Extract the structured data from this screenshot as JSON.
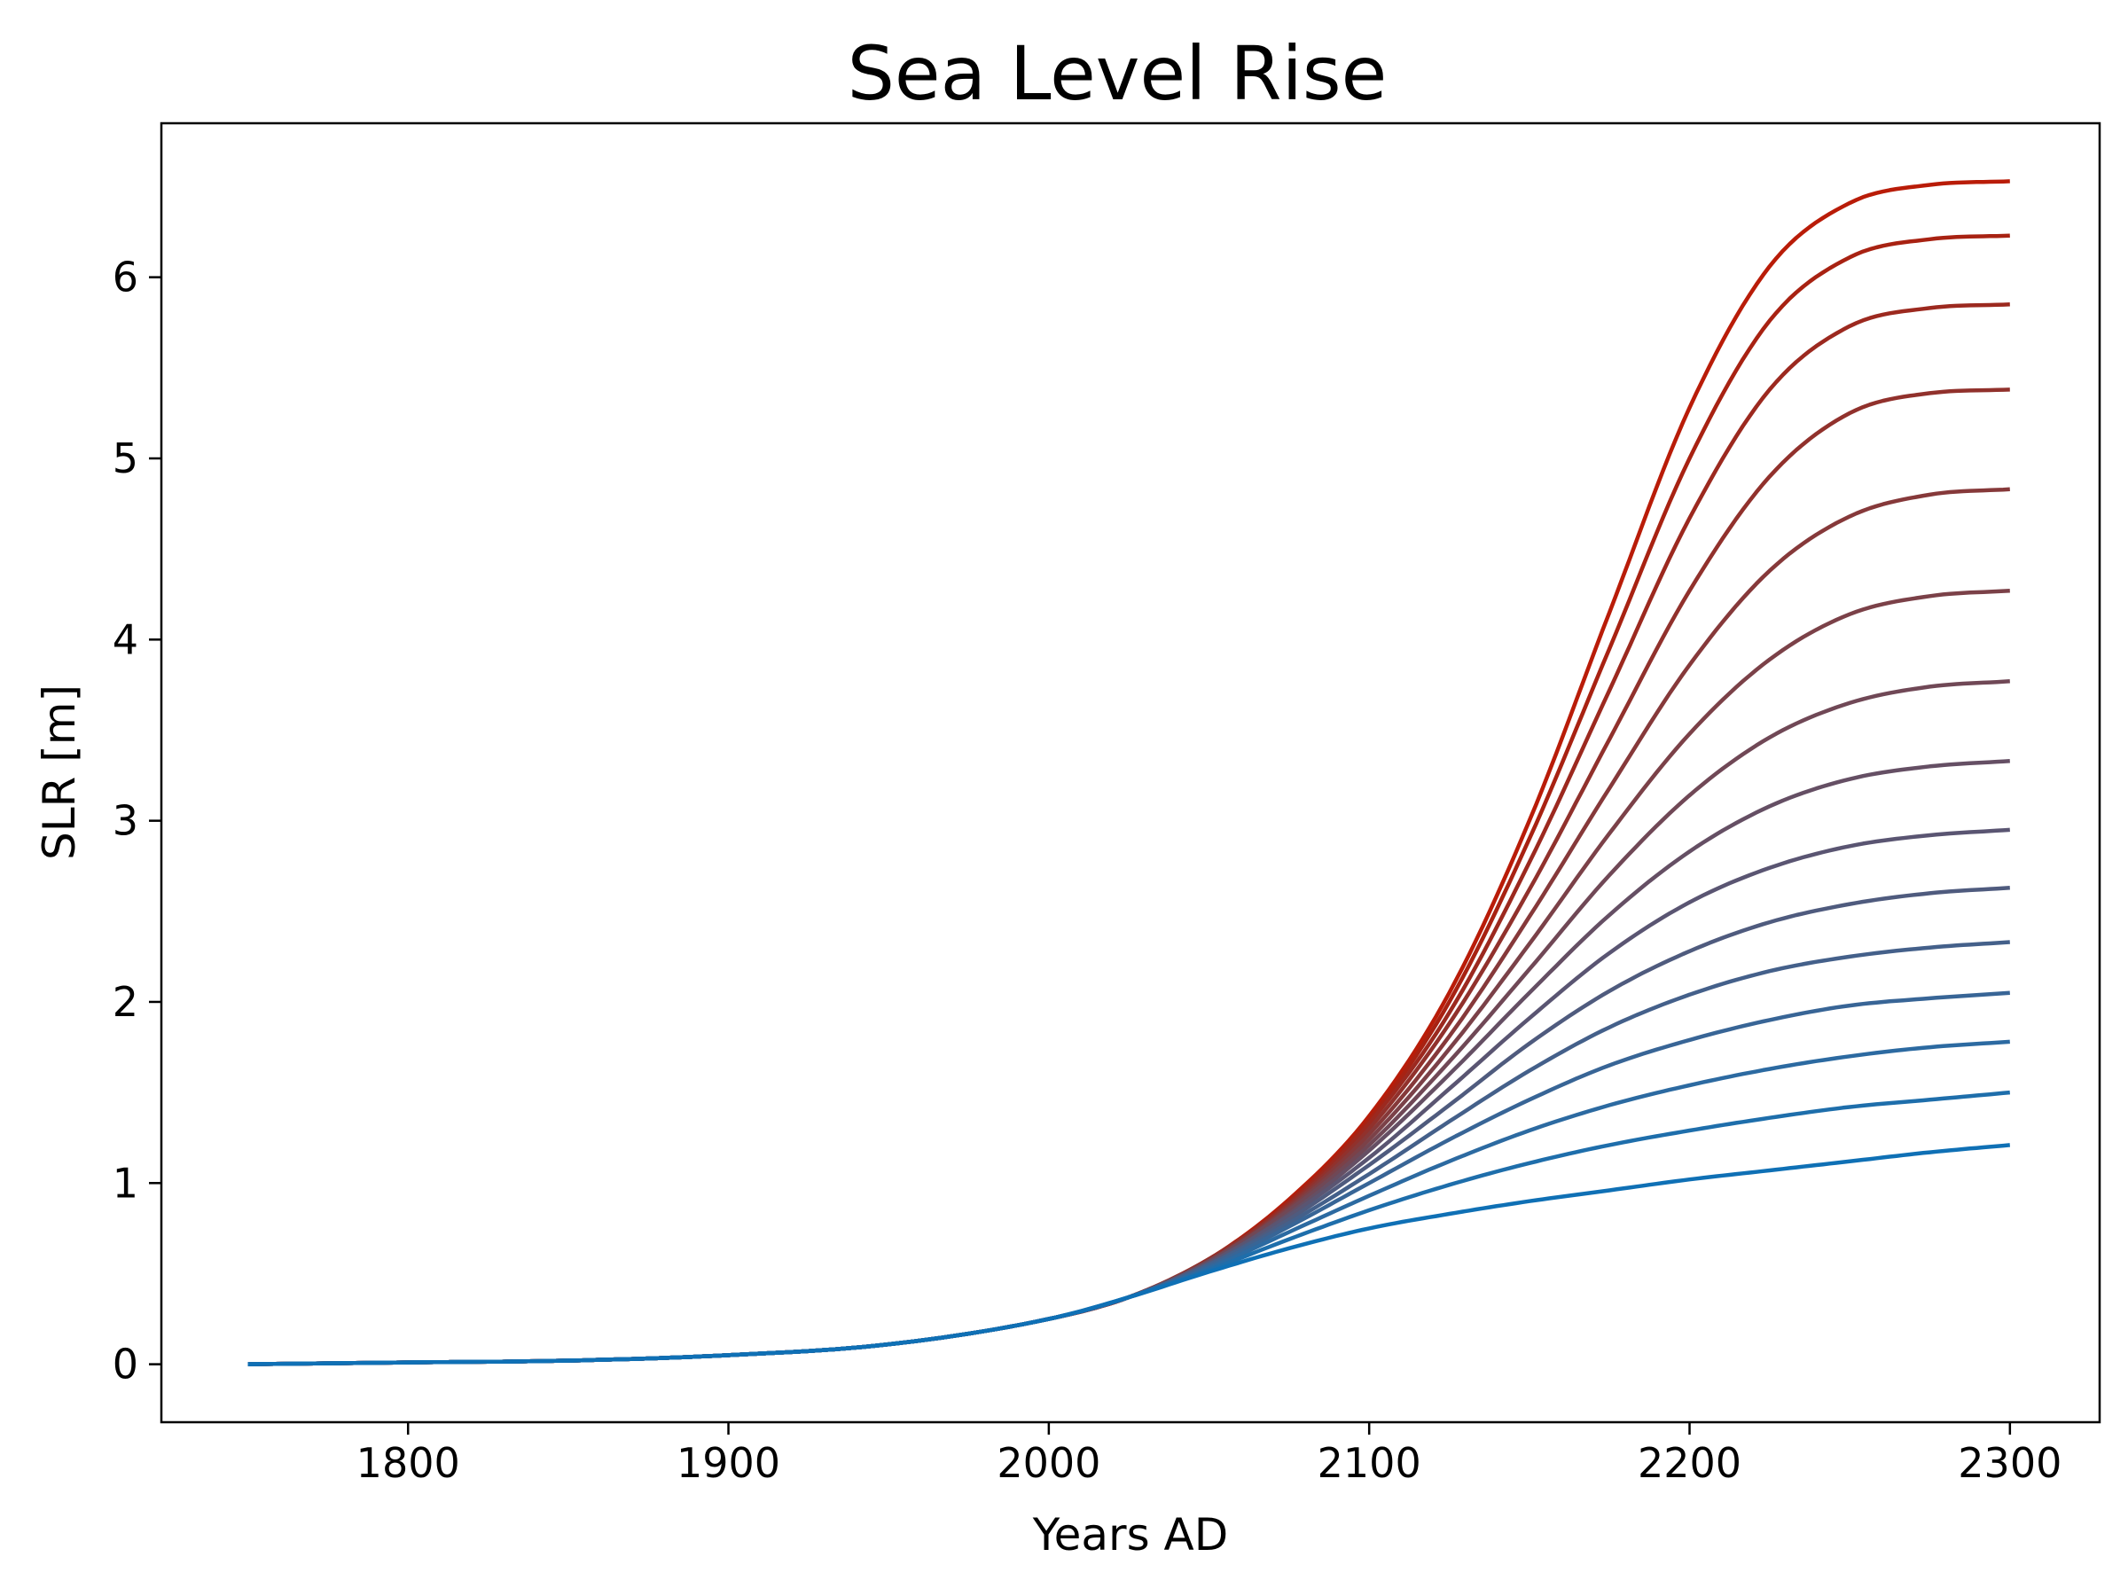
{
  "chart_data": {
    "type": "line",
    "title": "Sea Level Rise",
    "xlabel": "Years AD",
    "ylabel": "SLR [m]",
    "xlim": [
      1723,
      2328
    ],
    "ylim": [
      -0.32,
      6.85
    ],
    "xticks": [
      "1800",
      "1900",
      "2000",
      "2100",
      "2200",
      "2300"
    ],
    "yticks": [
      "0",
      "1",
      "2",
      "3",
      "4",
      "5",
      "6"
    ],
    "grid": false,
    "legend": "none",
    "x": [
      1750,
      1800,
      1850,
      1900,
      1950,
      2000,
      2025,
      2050,
      2075,
      2100,
      2125,
      2150,
      2175,
      2200,
      2225,
      2250,
      2275,
      2300
    ],
    "series": [
      {
        "color": "#0f70b5",
        "values": [
          0.0,
          0.01,
          0.02,
          0.05,
          0.11,
          0.25,
          0.37,
          0.51,
          0.64,
          0.75,
          0.83,
          0.9,
          0.96,
          1.02,
          1.07,
          1.12,
          1.17,
          1.21
        ]
      },
      {
        "color": "#1e6eab",
        "values": [
          0.0,
          0.01,
          0.02,
          0.05,
          0.11,
          0.25,
          0.37,
          0.52,
          0.69,
          0.85,
          0.99,
          1.11,
          1.21,
          1.29,
          1.36,
          1.42,
          1.46,
          1.5
        ]
      },
      {
        "color": "#2c6aa1",
        "values": [
          0.0,
          0.01,
          0.02,
          0.05,
          0.11,
          0.25,
          0.37,
          0.53,
          0.73,
          0.93,
          1.12,
          1.29,
          1.43,
          1.54,
          1.63,
          1.7,
          1.75,
          1.78
        ]
      },
      {
        "color": "#386596",
        "values": [
          0.0,
          0.01,
          0.02,
          0.05,
          0.11,
          0.25,
          0.37,
          0.54,
          0.76,
          1.0,
          1.24,
          1.46,
          1.65,
          1.79,
          1.9,
          1.98,
          2.02,
          2.05
        ]
      },
      {
        "color": "#44608a",
        "values": [
          0.0,
          0.01,
          0.02,
          0.05,
          0.11,
          0.25,
          0.37,
          0.55,
          0.78,
          1.05,
          1.34,
          1.62,
          1.86,
          2.04,
          2.17,
          2.25,
          2.3,
          2.33
        ]
      },
      {
        "color": "#4f5b7e",
        "values": [
          0.0,
          0.01,
          0.02,
          0.05,
          0.11,
          0.25,
          0.37,
          0.55,
          0.8,
          1.1,
          1.43,
          1.77,
          2.06,
          2.28,
          2.44,
          2.54,
          2.6,
          2.63
        ]
      },
      {
        "color": "#5a5572",
        "values": [
          0.0,
          0.01,
          0.02,
          0.05,
          0.11,
          0.25,
          0.37,
          0.56,
          0.82,
          1.14,
          1.52,
          1.91,
          2.27,
          2.55,
          2.74,
          2.86,
          2.92,
          2.95
        ]
      },
      {
        "color": "#654f64",
        "values": [
          0.0,
          0.01,
          0.02,
          0.05,
          0.11,
          0.25,
          0.37,
          0.56,
          0.83,
          1.18,
          1.6,
          2.05,
          2.48,
          2.83,
          3.08,
          3.23,
          3.3,
          3.33
        ]
      },
      {
        "color": "#704856",
        "values": [
          0.0,
          0.01,
          0.02,
          0.05,
          0.11,
          0.25,
          0.37,
          0.57,
          0.85,
          1.21,
          1.67,
          2.18,
          2.7,
          3.14,
          3.46,
          3.65,
          3.74,
          3.77
        ]
      },
      {
        "color": "#7b4148",
        "values": [
          0.0,
          0.01,
          0.02,
          0.05,
          0.11,
          0.25,
          0.37,
          0.57,
          0.86,
          1.24,
          1.74,
          2.32,
          2.93,
          3.48,
          3.89,
          4.14,
          4.24,
          4.27
        ]
      },
      {
        "color": "#86393a",
        "values": [
          0.0,
          0.01,
          0.02,
          0.05,
          0.11,
          0.25,
          0.37,
          0.57,
          0.87,
          1.27,
          1.81,
          2.47,
          3.18,
          3.86,
          4.38,
          4.68,
          4.8,
          4.83
        ]
      },
      {
        "color": "#91312c",
        "values": [
          0.0,
          0.01,
          0.02,
          0.05,
          0.11,
          0.25,
          0.37,
          0.58,
          0.88,
          1.3,
          1.88,
          2.62,
          3.45,
          4.27,
          4.9,
          5.25,
          5.36,
          5.38
        ]
      },
      {
        "color": "#9c291f",
        "values": [
          0.0,
          0.01,
          0.02,
          0.05,
          0.11,
          0.25,
          0.37,
          0.58,
          0.89,
          1.33,
          1.94,
          2.77,
          3.72,
          4.67,
          5.38,
          5.73,
          5.83,
          5.85
        ]
      },
      {
        "color": "#a82212",
        "values": [
          0.0,
          0.01,
          0.02,
          0.05,
          0.11,
          0.25,
          0.37,
          0.58,
          0.9,
          1.35,
          2.0,
          2.9,
          3.95,
          5.0,
          5.76,
          6.11,
          6.21,
          6.23
        ]
      },
      {
        "color": "#b91c08",
        "values": [
          0.0,
          0.01,
          0.02,
          0.05,
          0.11,
          0.25,
          0.37,
          0.58,
          0.91,
          1.37,
          2.05,
          3.0,
          4.15,
          5.28,
          6.06,
          6.41,
          6.51,
          6.53
        ]
      }
    ]
  }
}
